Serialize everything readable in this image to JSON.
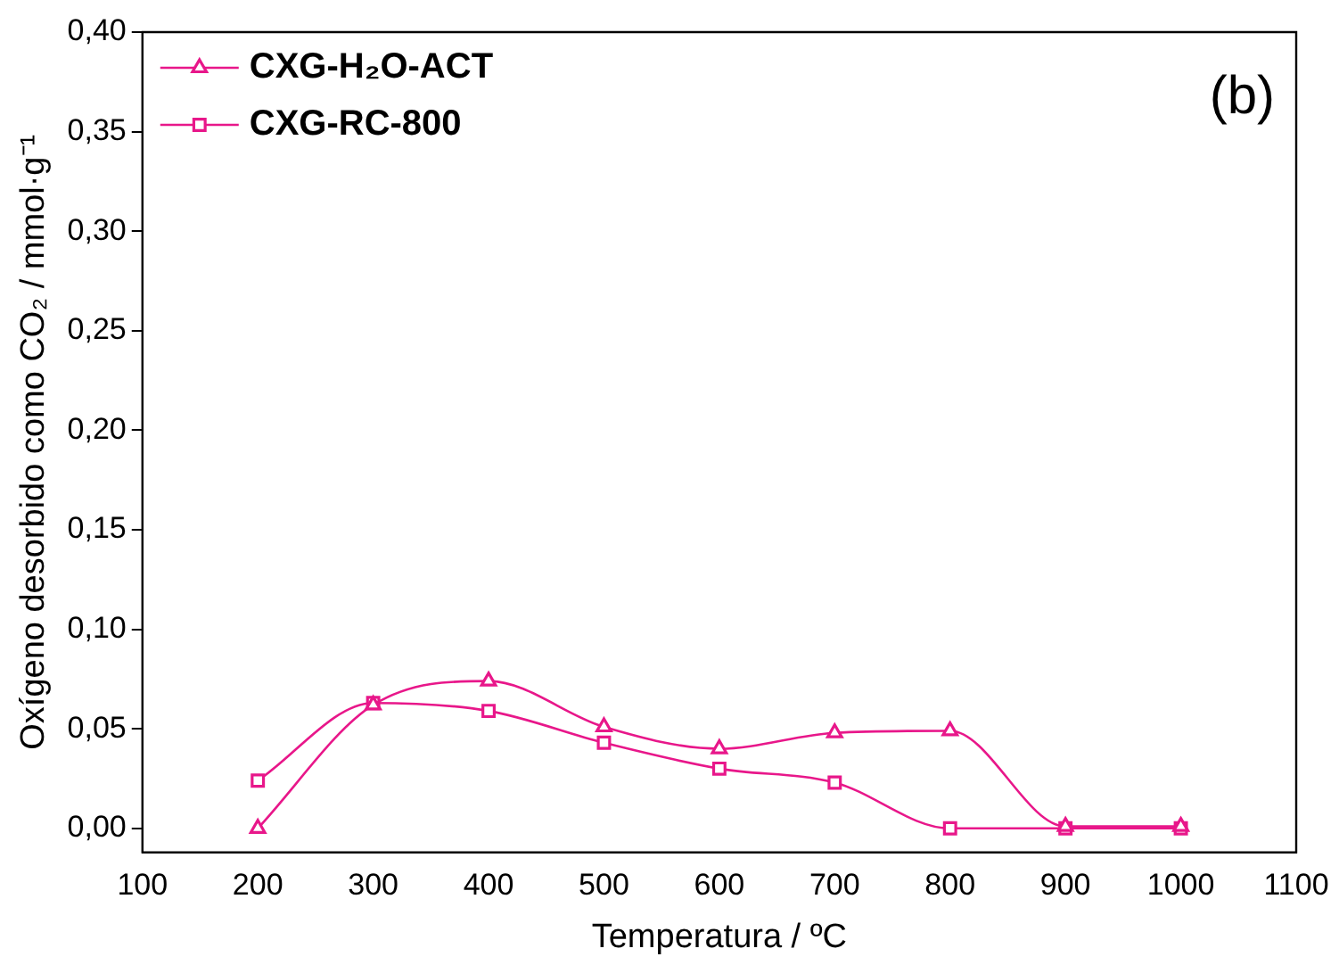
{
  "chart_data": {
    "type": "line",
    "xlabel": "Temperatura / ºC",
    "ylabel": "Oxígeno desorbido como CO₂ / mmol·g⁻¹",
    "x": [
      200,
      300,
      400,
      500,
      600,
      700,
      800,
      900,
      1000
    ],
    "series": [
      {
        "name": "CXG-H₂O-ACT",
        "color": "#e8178a",
        "marker": "triangle",
        "values": [
          0.0,
          0.062,
          0.074,
          0.051,
          0.04,
          0.048,
          0.049,
          0.001,
          0.001
        ]
      },
      {
        "name": "CXG-RC-800",
        "color": "#e8178a",
        "marker": "square",
        "values": [
          0.024,
          0.063,
          0.059,
          0.043,
          0.03,
          0.023,
          0.0,
          0.0,
          0.0
        ]
      }
    ],
    "xlim": [
      100,
      1100
    ],
    "xticks": [
      100,
      200,
      300,
      400,
      500,
      600,
      700,
      800,
      900,
      1000,
      1100
    ],
    "ylim": [
      -0.012,
      0.4
    ],
    "yticks": [
      {
        "value": 0,
        "label": "0,00"
      },
      {
        "value": 0.05,
        "label": "0,05"
      },
      {
        "value": 0.1,
        "label": "0,10"
      },
      {
        "value": 0.15,
        "label": "0,15"
      },
      {
        "value": 0.2,
        "label": "0,20"
      },
      {
        "value": 0.25,
        "label": "0,25"
      },
      {
        "value": 0.3,
        "label": "0,30"
      },
      {
        "value": 0.35,
        "label": "0,35"
      },
      {
        "value": 0.4,
        "label": "0,40"
      }
    ],
    "annotations": [
      "(b)"
    ],
    "legend": "top left",
    "grid": false,
    "line_style": "solid"
  }
}
